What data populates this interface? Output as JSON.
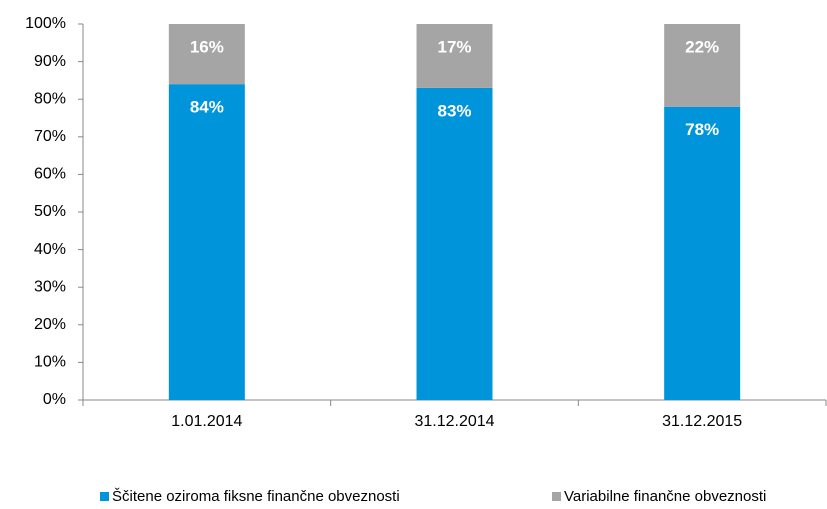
{
  "chart_data": {
    "type": "stacked_bar",
    "categories": [
      "1.01.2014",
      "31.12.2014",
      "31.12.2015"
    ],
    "series": [
      {
        "name": "Ščitene oziroma fiksne finančne obveznosti",
        "color": "#0095da",
        "values": [
          84,
          83,
          78
        ],
        "value_labels": [
          "84%",
          "83%",
          "78%"
        ]
      },
      {
        "name": "Variabilne finančne obveznosti",
        "color": "#a5a5a5",
        "values": [
          16,
          17,
          22
        ],
        "value_labels": [
          "16%",
          "17%",
          "22%"
        ]
      }
    ],
    "ylim": [
      0,
      100
    ],
    "yticks": [
      {
        "value": 0,
        "label": "0%"
      },
      {
        "value": 10,
        "label": "10%"
      },
      {
        "value": 20,
        "label": "20%"
      },
      {
        "value": 30,
        "label": "30%"
      },
      {
        "value": 40,
        "label": "40%"
      },
      {
        "value": 50,
        "label": "50%"
      },
      {
        "value": 60,
        "label": "60%"
      },
      {
        "value": 70,
        "label": "70%"
      },
      {
        "value": 80,
        "label": "80%"
      },
      {
        "value": 90,
        "label": "90%"
      },
      {
        "value": 100,
        "label": "100%"
      }
    ],
    "legend": "bottom"
  }
}
